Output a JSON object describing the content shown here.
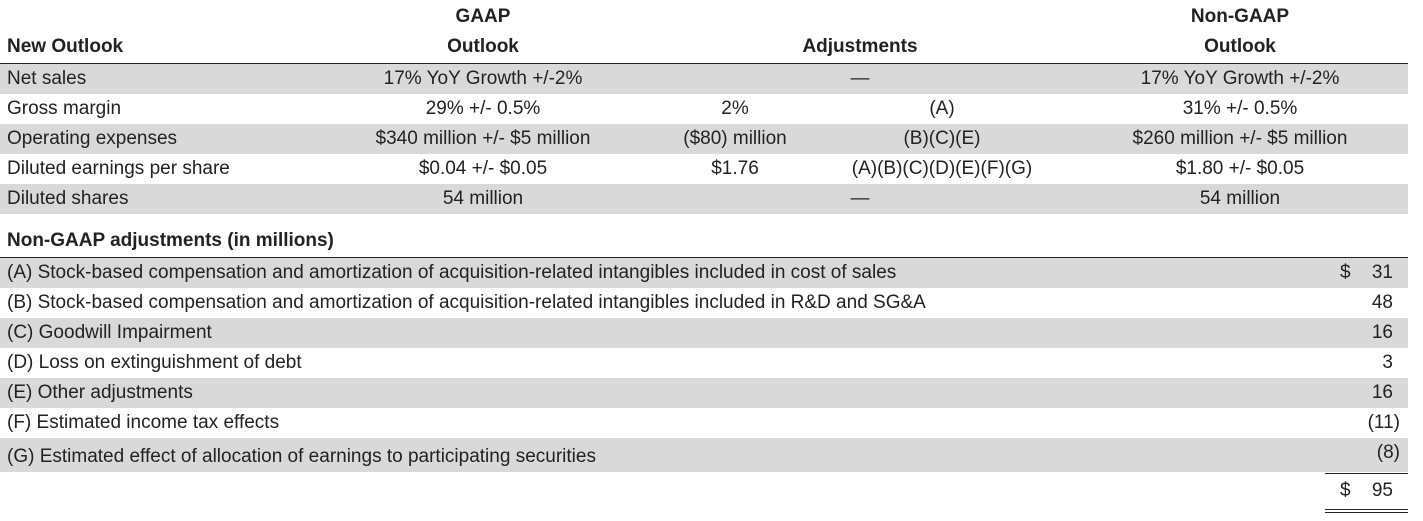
{
  "outlook": {
    "header": {
      "gaap_line1": "GAAP",
      "gaap_line2": "Outlook",
      "title": "New Outlook",
      "adjustments": "Adjustments",
      "nongaap_line1": "Non-GAAP",
      "nongaap_line2": "Outlook"
    },
    "rows": [
      {
        "label": "Net sales",
        "gaap": "17% YoY Growth +/-2%",
        "adj_amount": "",
        "adj_ref": "—",
        "nongaap": "17% YoY Growth +/-2%"
      },
      {
        "label": "Gross margin",
        "gaap": "29% +/- 0.5%",
        "adj_amount": "2%",
        "adj_ref": "(A)",
        "nongaap": "31% +/- 0.5%"
      },
      {
        "label": "Operating expenses",
        "gaap": "$340 million +/- $5 million",
        "adj_amount": "($80) million",
        "adj_ref": "(B)(C)(E)",
        "nongaap": "$260 million +/- $5 million"
      },
      {
        "label": "Diluted earnings per share",
        "gaap": "$0.04 +/- $0.05",
        "adj_amount": "$1.76",
        "adj_ref": "(A)(B)(C)(D)(E)(F)(G)",
        "nongaap": "$1.80 +/- $0.05"
      },
      {
        "label": "Diluted shares",
        "gaap": "54 million",
        "adj_amount": "",
        "adj_ref": "—",
        "nongaap": "54 million"
      }
    ]
  },
  "adjustments": {
    "title": "Non-GAAP adjustments (in millions)",
    "currency_symbol": "$",
    "items": [
      {
        "label": "(A) Stock-based compensation and amortization of acquisition-related intangibles included in cost of sales",
        "value": "31"
      },
      {
        "label": "(B) Stock-based compensation and amortization of acquisition-related intangibles included in R&D and SG&A",
        "value": "48"
      },
      {
        "label": "(C) Goodwill Impairment",
        "value": "16"
      },
      {
        "label": "(D) Loss on extinguishment of debt",
        "value": "3"
      },
      {
        "label": "(E) Other adjustments",
        "value": "16"
      },
      {
        "label": "(F) Estimated income tax effects",
        "value": "(11)"
      },
      {
        "label": "(G) Estimated effect of allocation of earnings to participating securities",
        "value": "(8)"
      }
    ],
    "total_symbol": "$",
    "total_value": "95"
  }
}
